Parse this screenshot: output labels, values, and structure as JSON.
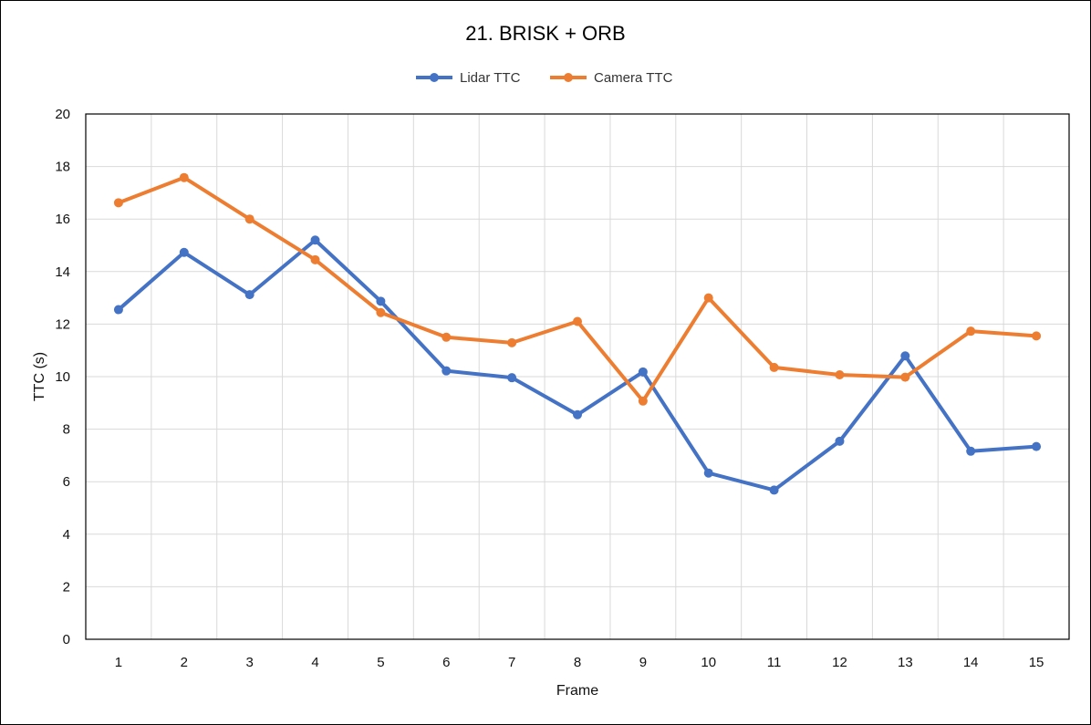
{
  "chart_data": {
    "type": "line",
    "title": "21. BRISK + ORB",
    "xlabel": "Frame",
    "ylabel": "TTC (s)",
    "x": [
      1,
      2,
      3,
      4,
      5,
      6,
      7,
      8,
      9,
      10,
      11,
      12,
      13,
      14,
      15
    ],
    "ylim": [
      0,
      20
    ],
    "yticks": [
      0,
      2,
      4,
      6,
      8,
      10,
      12,
      14,
      16,
      18,
      20
    ],
    "grid": true,
    "legend": "top-center",
    "series": [
      {
        "name": "Lidar TTC",
        "color": "#4472C4",
        "values": [
          12.55,
          14.73,
          13.12,
          15.2,
          12.87,
          10.22,
          9.96,
          8.55,
          10.18,
          6.33,
          5.68,
          7.54,
          10.79,
          7.16,
          7.34
        ]
      },
      {
        "name": "Camera TTC",
        "color": "#ED7D31",
        "values": [
          16.62,
          17.58,
          16.0,
          14.45,
          12.44,
          11.5,
          11.29,
          12.1,
          9.07,
          13.0,
          10.35,
          10.07,
          9.98,
          11.73,
          11.55
        ]
      }
    ]
  }
}
